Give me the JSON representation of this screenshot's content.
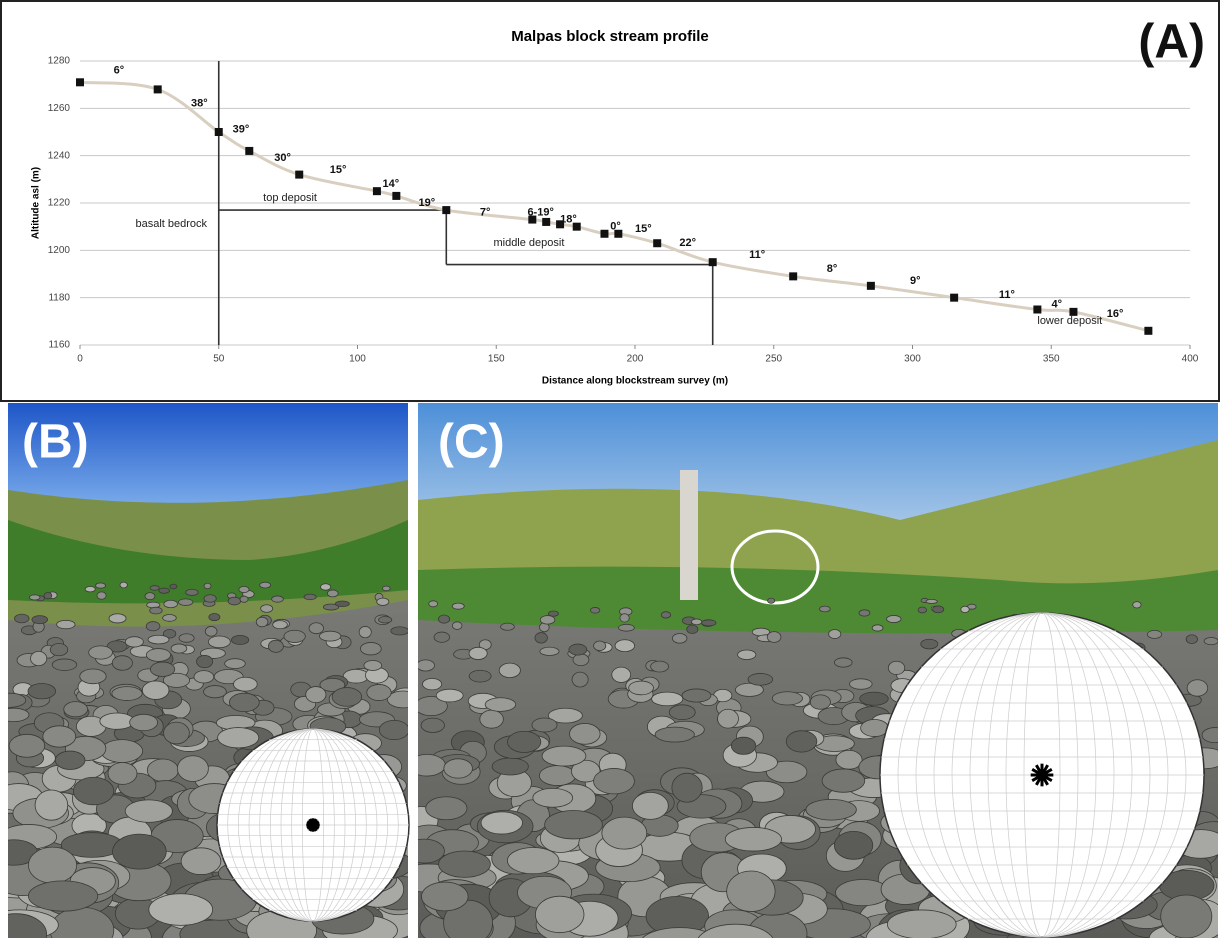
{
  "panels": {
    "a": "(A)",
    "b": "(B)",
    "c": "(C)"
  },
  "chart_data": {
    "type": "line",
    "title": "Malpas block stream profile",
    "x_label": "Distance along blockstream survey (m)",
    "y_label": "Altitude asl (m)",
    "x": [
      0,
      28,
      50,
      61,
      79,
      107,
      114,
      132,
      163,
      168,
      173,
      179,
      189,
      194,
      208,
      228,
      257,
      285,
      315,
      345,
      358,
      385
    ],
    "values": [
      1271,
      1268,
      1250,
      1242,
      1232,
      1225,
      1223,
      1217,
      1213,
      1212,
      1211,
      1210,
      1207,
      1207,
      1203,
      1195,
      1189,
      1185,
      1180,
      1175,
      1174,
      1166
    ],
    "color": "#d9cfc0",
    "marker_color": "#111111",
    "xlim": [
      0,
      400
    ],
    "xticks": [
      0,
      50,
      100,
      150,
      200,
      250,
      300,
      350,
      400
    ],
    "ylim": [
      1160,
      1280
    ],
    "yticks": [
      1160,
      1180,
      1200,
      1220,
      1240,
      1260,
      1280
    ],
    "grid": true,
    "annotations": [
      {
        "text": "6°",
        "x": 14,
        "y": 1276
      },
      {
        "text": "38°",
        "x": 43,
        "y": 1262
      },
      {
        "text": "39°",
        "x": 58,
        "y": 1251
      },
      {
        "text": "30°",
        "x": 73,
        "y": 1239
      },
      {
        "text": "15°",
        "x": 93,
        "y": 1234
      },
      {
        "text": "14°",
        "x": 112,
        "y": 1228
      },
      {
        "text": "19°",
        "x": 125,
        "y": 1220
      },
      {
        "text": "7°",
        "x": 146,
        "y": 1216
      },
      {
        "text": "6-19°",
        "x": 166,
        "y": 1216
      },
      {
        "text": "18°",
        "x": 176,
        "y": 1213
      },
      {
        "text": "0°",
        "x": 193,
        "y": 1210
      },
      {
        "text": "15°",
        "x": 203,
        "y": 1209
      },
      {
        "text": "22°",
        "x": 219,
        "y": 1203
      },
      {
        "text": "11°",
        "x": 244,
        "y": 1198
      },
      {
        "text": "8°",
        "x": 271,
        "y": 1192
      },
      {
        "text": "9°",
        "x": 301,
        "y": 1187
      },
      {
        "text": "11°",
        "x": 334,
        "y": 1181
      },
      {
        "text": "4°",
        "x": 352,
        "y": 1177
      },
      {
        "text": "16°",
        "x": 373,
        "y": 1173
      }
    ],
    "regions": [
      {
        "text": "basalt bedrock",
        "x": 20,
        "y": 1211
      },
      {
        "text": "top deposit",
        "x": 66,
        "y": 1222
      },
      {
        "text": "middle deposit",
        "x": 149,
        "y": 1203
      },
      {
        "text": "lower deposit",
        "x": 345,
        "y": 1170
      }
    ],
    "boundaries": [
      {
        "x": [
          50,
          50
        ],
        "y": [
          1160,
          1280
        ]
      },
      {
        "x": [
          50,
          132
        ],
        "y": [
          1217,
          1217
        ]
      },
      {
        "x": [
          132,
          132
        ],
        "y": [
          1217,
          1194
        ]
      },
      {
        "x": [
          132,
          228
        ],
        "y": [
          1194,
          1194
        ]
      },
      {
        "x": [
          228,
          228
        ],
        "y": [
          1194,
          1160
        ]
      }
    ]
  }
}
